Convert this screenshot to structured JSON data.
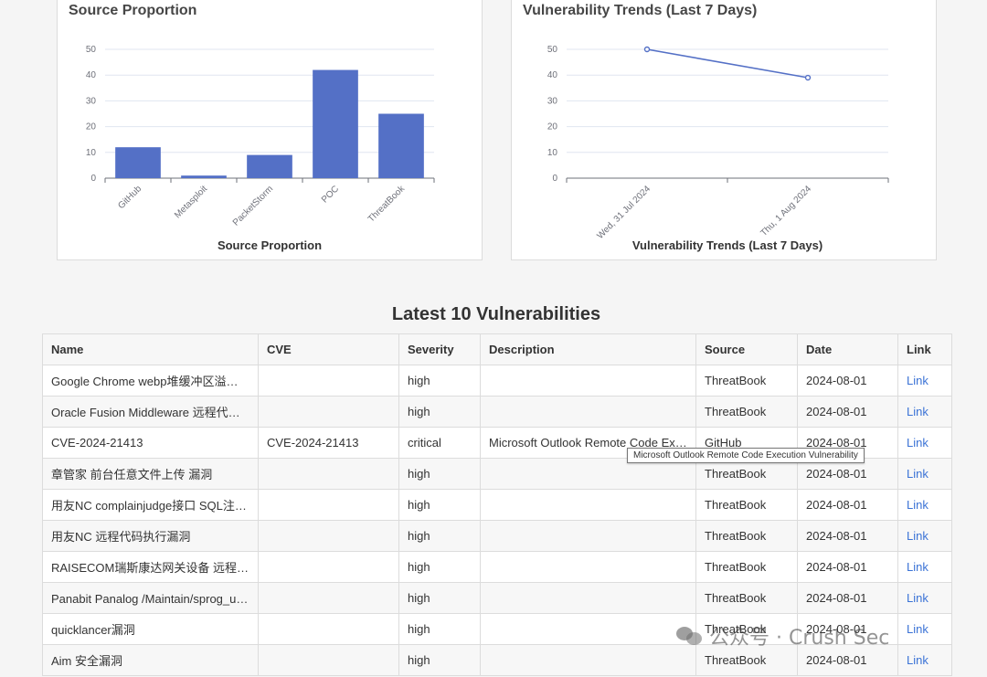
{
  "source_panel": {
    "title": "Source Proportion"
  },
  "trend_panel": {
    "title": "Vulnerability Trends (Last 7 Days)"
  },
  "chart_data": [
    {
      "type": "bar",
      "title": "Source Proportion",
      "xlabel": "Source Proportion",
      "ylabel": "",
      "categories": [
        "GitHub",
        "Metasploit",
        "PacketStorm",
        "POC",
        "ThreatBook"
      ],
      "values": [
        12,
        1,
        9,
        42,
        25
      ],
      "ylim": [
        0,
        50
      ],
      "yticks": [
        "0",
        "10",
        "20",
        "30",
        "40",
        "50"
      ],
      "grid": true,
      "color": "#5470c6"
    },
    {
      "type": "line",
      "title": "Vulnerability Trends (Last 7 Days)",
      "xlabel": "Vulnerability Trends (Last 7 Days)",
      "ylabel": "",
      "x": [
        "Wed, 31 Jul 2024",
        "Thu, 1 Aug 2024"
      ],
      "values": [
        50,
        39
      ],
      "ylim": [
        0,
        50
      ],
      "yticks": [
        "0",
        "10",
        "20",
        "30",
        "40",
        "50"
      ],
      "grid": true,
      "color": "#5470c6"
    }
  ],
  "table": {
    "title": "Latest 10 Vulnerabilities",
    "columns": [
      "Name",
      "CVE",
      "Severity",
      "Description",
      "Source",
      "Date",
      "Link"
    ],
    "rows": [
      [
        "Google Chrome webp堆缓冲区溢出漏洞",
        "",
        "high",
        "",
        "ThreatBook",
        "2024-08-01",
        "Link"
      ],
      [
        "Oracle Fusion Middleware 远程代码执行漏洞",
        "",
        "high",
        "",
        "ThreatBook",
        "2024-08-01",
        "Link"
      ],
      [
        "CVE-2024-21413",
        "CVE-2024-21413",
        "critical",
        "Microsoft Outlook Remote Code Execution Vulnerability",
        "GitHub",
        "2024-08-01",
        "Link"
      ],
      [
        "章管家 前台任意文件上传 漏洞",
        "",
        "high",
        "",
        "ThreatBook",
        "2024-08-01",
        "Link"
      ],
      [
        "用友NC complainjudge接口 SQL注入漏洞",
        "",
        "high",
        "",
        "ThreatBook",
        "2024-08-01",
        "Link"
      ],
      [
        "用友NC 远程代码执行漏洞",
        "",
        "high",
        "",
        "ThreatBook",
        "2024-08-01",
        "Link"
      ],
      [
        "RAISECOM瑞斯康达网关设备 远程命令执行漏洞",
        "",
        "high",
        "",
        "ThreatBook",
        "2024-08-01",
        "Link"
      ],
      [
        "Panabit Panalog /Maintain/sprog_upstatus.php SQL注入漏洞",
        "",
        "high",
        "",
        "ThreatBook",
        "2024-08-01",
        "Link"
      ],
      [
        "quicklancer漏洞",
        "",
        "high",
        "",
        "ThreatBook",
        "2024-08-01",
        "Link"
      ],
      [
        "Aim 安全漏洞",
        "",
        "high",
        "",
        "ThreatBook",
        "2024-08-01",
        "Link"
      ]
    ]
  },
  "tooltip": {
    "text": "Microsoft Outlook Remote Code Execution Vulnerability"
  },
  "watermark": {
    "text": "公众号 · Crush Sec"
  }
}
